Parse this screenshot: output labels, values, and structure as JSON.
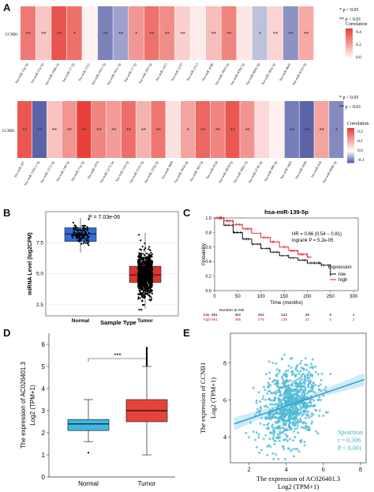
{
  "panels": {
    "A": "A",
    "B": "B",
    "C": "C",
    "D": "D",
    "E": "E"
  },
  "colors": {
    "heat_red": "#e8413a",
    "heat_blue": "#5b63a8",
    "box_blue": "#2f6fd6",
    "box_red": "#d9372d",
    "km_low": "#000000",
    "km_high": "#e41a1c",
    "box_cyan": "#3fb8e0",
    "box_red2": "#e6443a",
    "scatter": "#4cb8d6"
  },
  "chart_data": [
    {
      "type": "heatmap",
      "panel": "A-top",
      "row_label": "CCNB1",
      "legend_title": "Correlation",
      "legend_ticks": [
        "0.4",
        "0.2",
        "0.0"
      ],
      "significance_notes": [
        "* p < 0.05",
        "** p < 0.01"
      ],
      "cells": [
        {
          "label": "hsa-miR-15p-5p",
          "value": 0.28,
          "sig": "**"
        },
        {
          "label": "hsa-miR-15a-5p",
          "value": 0.12,
          "sig": "**"
        },
        {
          "label": "hsa-miR-106b-5p",
          "value": 0.36,
          "sig": "**"
        },
        {
          "label": "hsa-miR-17-5p",
          "value": 0.3,
          "sig": "*"
        },
        {
          "label": "hsa-miR-1321",
          "value": 0.03,
          "sig": ""
        },
        {
          "label": "hsa-miR-181c-5p",
          "value": -0.08,
          "sig": "**"
        },
        {
          "label": "hsa-miR-181c-3p",
          "value": -0.06,
          "sig": "**"
        },
        {
          "label": "hsa-miR-17-3p",
          "value": 0.22,
          "sig": "*"
        },
        {
          "label": "hsa-miR-205-5p",
          "value": 0.3,
          "sig": "**"
        },
        {
          "label": "hsa-miR-1415",
          "value": 0.24,
          "sig": "**"
        },
        {
          "label": "hsa-miR-1255",
          "value": 0.1,
          "sig": "**"
        },
        {
          "label": "hsa-miR-2113",
          "value": 0.04,
          "sig": ""
        },
        {
          "label": "hsa-miR-4306",
          "value": 0.14,
          "sig": "**"
        },
        {
          "label": "hsa-miR-3925-5p",
          "value": 0.26,
          "sig": "**"
        },
        {
          "label": "hsa-miR-4306-5p",
          "value": 0.05,
          "sig": ""
        },
        {
          "label": "hsa-miR-6802-5p",
          "value": -0.04,
          "sig": "*"
        },
        {
          "label": "hsa-miR-365a-5p",
          "value": 0.09,
          "sig": "**"
        },
        {
          "label": "hsa-miR-4641",
          "value": -0.07,
          "sig": "**"
        },
        {
          "label": "hsa-miR-4533-5p",
          "value": 0.18,
          "sig": "**"
        }
      ]
    },
    {
      "type": "heatmap",
      "panel": "A-bottom",
      "row_label": "CCNB1",
      "legend_title": "Correlation",
      "legend_ticks": [
        "0.2",
        "0.1",
        "0.0",
        "-0.1"
      ],
      "significance_notes": [
        "* p < 0.05",
        "** p < 0.01"
      ],
      "cells": [
        {
          "label": "hsa-miR-107",
          "value": 0.22,
          "sig": "**"
        },
        {
          "label": "hsa-miR-1185-1-3p",
          "value": -0.12,
          "sig": "**"
        },
        {
          "label": "hsa-miR-1272-5p",
          "value": 0.08,
          "sig": "**"
        },
        {
          "label": "hsa-miR-148-5p",
          "value": 0.14,
          "sig": "**"
        },
        {
          "label": "hsa-miR-15a-5p",
          "value": 0.25,
          "sig": "**"
        },
        {
          "label": "hsa-miR-1976",
          "value": 0.16,
          "sig": "**"
        },
        {
          "label": "hsa-miR-1272-5p",
          "value": 0.13,
          "sig": "**"
        },
        {
          "label": "hsa-miR-214-5p",
          "value": 0.19,
          "sig": "**"
        },
        {
          "label": "hsa-miR-3155-5p",
          "value": 0.1,
          "sig": "**"
        },
        {
          "label": "hsa-miR-3256-3p",
          "value": 0.18,
          "sig": "**"
        },
        {
          "label": "hsa-miR-3609",
          "value": 0.04,
          "sig": ""
        },
        {
          "label": "hsa-miR-3616-5p",
          "value": 0.12,
          "sig": "*"
        },
        {
          "label": "hsa-miR-362-5p",
          "value": 0.2,
          "sig": "**"
        },
        {
          "label": "hsa-miR-4328",
          "value": 0.16,
          "sig": "**"
        },
        {
          "label": "hsa-miR-4659-5p",
          "value": 0.22,
          "sig": "**"
        },
        {
          "label": "hsa-miR-4662-5p",
          "value": 0.14,
          "sig": "**"
        },
        {
          "label": "hsa-miR-4745-5p",
          "value": 0.05,
          "sig": ""
        },
        {
          "label": "hsa-miR-490-5p",
          "value": 0.02,
          "sig": ""
        },
        {
          "label": "hsa-miR-5683",
          "value": -0.1,
          "sig": "**"
        },
        {
          "label": "hsa-miR-5696",
          "value": -0.12,
          "sig": "**"
        },
        {
          "label": "hsa-miR-650",
          "value": 0.12,
          "sig": "**"
        },
        {
          "label": "hsa-miR-6846-3p",
          "value": -0.09,
          "sig": "*"
        }
      ]
    },
    {
      "type": "box",
      "panel": "B",
      "ylabel": "miRNA Level (log2CPM)",
      "xlabel": "Sample Type",
      "annotation": "P = 7.03e-06",
      "categories": [
        "Normal",
        "Tumor"
      ],
      "yticks": [
        2.5,
        5.0,
        7.5
      ],
      "ylim": [
        1.6,
        10.0
      ],
      "boxes": [
        {
          "q1": 7.6,
          "median": 8.2,
          "q3": 8.7,
          "low": 6.7,
          "high": 9.5
        },
        {
          "q1": 4.3,
          "median": 4.9,
          "q3": 5.6,
          "low": 2.2,
          "high": 8.3
        }
      ]
    },
    {
      "type": "line",
      "panel": "C",
      "title": "hsa-miR-139-5p",
      "ylabel": "Probability",
      "xlabel": "Time (months)",
      "stats": [
        "HR = 0.66 (0.54 − 0.81)",
        "logrank P = 5.2e-05"
      ],
      "legend_title": "Expression",
      "series": [
        {
          "name": "low",
          "x": [
            0,
            20,
            40,
            60,
            80,
            100,
            120,
            140,
            160,
            180,
            200,
            230,
            250
          ],
          "y": [
            1.0,
            0.9,
            0.8,
            0.71,
            0.64,
            0.58,
            0.53,
            0.48,
            0.45,
            0.42,
            0.38,
            0.35,
            0.2
          ]
        },
        {
          "name": "high",
          "x": [
            0,
            20,
            40,
            60,
            80,
            100,
            120,
            140,
            160,
            180,
            200,
            210
          ],
          "y": [
            1.0,
            0.96,
            0.91,
            0.85,
            0.79,
            0.73,
            0.67,
            0.6,
            0.55,
            0.5,
            0.46,
            0.46
          ]
        }
      ],
      "xticks": [
        0,
        50,
        100,
        150,
        200,
        250,
        300
      ],
      "yticks": [
        0.0,
        0.2,
        0.4,
        0.6,
        0.8,
        1.0
      ],
      "risk_table": {
        "title": "Number at risk",
        "rows": [
          {
            "name": "low",
            "values": [
              "661",
              "461",
              "263",
              "122",
              "25",
              "6",
              "1"
            ]
          },
          {
            "name": "high",
            "values": [
              "661",
              "455",
              "276",
              "135",
              "22",
              "3",
              "2"
            ]
          }
        ]
      }
    },
    {
      "type": "box",
      "panel": "D",
      "ylabel_line1": "The expression of AC026401.3",
      "ylabel_line2": "Log2 (TPM+1)",
      "annotation": "***",
      "categories": [
        "Normal",
        "Tumor"
      ],
      "yticks": [
        0,
        1,
        2,
        3,
        4,
        5,
        6
      ],
      "ylim": [
        0,
        6
      ],
      "boxes": [
        {
          "q1": 2.1,
          "median": 2.4,
          "q3": 2.6,
          "low": 1.6,
          "high": 3.5
        },
        {
          "q1": 2.5,
          "median": 3.0,
          "q3": 3.5,
          "low": 1.0,
          "high": 5.0
        }
      ]
    },
    {
      "type": "scatter",
      "panel": "E",
      "ylabel_line1": "The expression of CCNB1",
      "ylabel_line2": "Log2 (TPM+1)",
      "xlabel_line1": "The expression  of AC026401.3",
      "xlabel_line2": "Log2 (TPM+1)",
      "xticks": [
        2,
        4,
        6,
        8
      ],
      "yticks": [
        4,
        6,
        8
      ],
      "xlim": [
        1,
        8.3
      ],
      "ylim": [
        2.6,
        9.6
      ],
      "stats": [
        "Spearman",
        "r = 0.306",
        "P < 0.001"
      ],
      "fit": {
        "x": [
          1.2,
          8.2
        ],
        "y": [
          4.7,
          7.1
        ]
      }
    }
  ]
}
